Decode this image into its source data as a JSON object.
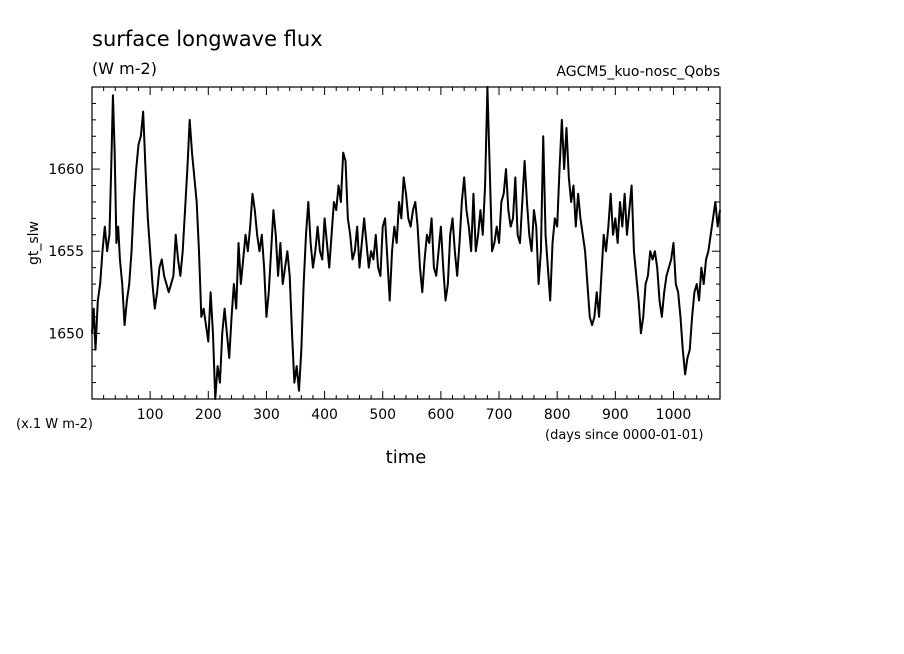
{
  "chart_data": {
    "type": "line",
    "title": "surface longwave flux",
    "units": "(W m-2)",
    "experiment": "AGCM5_kuo-nosc_Qobs",
    "ylabel": "gt_slw",
    "yscale_note": "(x.1 W m-2)",
    "xlabel": "time",
    "xunit_note": "(days since 0000-01-01)",
    "xlim": [
      0,
      1080
    ],
    "ylim": [
      1646,
      1665
    ],
    "xticks": [
      100,
      200,
      300,
      400,
      500,
      600,
      700,
      800,
      900,
      1000
    ],
    "yticks": [
      1650,
      1655,
      1660
    ],
    "grid": false,
    "series": [
      {
        "color": "#000000",
        "points": [
          [
            0,
            1650.0
          ],
          [
            3,
            1651.5
          ],
          [
            6,
            1649.0
          ],
          [
            10,
            1652.0
          ],
          [
            14,
            1653.0
          ],
          [
            18,
            1655.0
          ],
          [
            22,
            1656.5
          ],
          [
            26,
            1655.0
          ],
          [
            30,
            1656.0
          ],
          [
            33,
            1660.0
          ],
          [
            36,
            1664.5
          ],
          [
            39,
            1661.0
          ],
          [
            42,
            1655.5
          ],
          [
            45,
            1656.5
          ],
          [
            48,
            1654.5
          ],
          [
            52,
            1653.0
          ],
          [
            56,
            1650.5
          ],
          [
            60,
            1652.0
          ],
          [
            64,
            1653.0
          ],
          [
            68,
            1655.0
          ],
          [
            72,
            1658.0
          ],
          [
            76,
            1660.0
          ],
          [
            80,
            1661.5
          ],
          [
            84,
            1662.0
          ],
          [
            88,
            1663.5
          ],
          [
            92,
            1660.0
          ],
          [
            96,
            1657.0
          ],
          [
            100,
            1655.0
          ],
          [
            104,
            1653.0
          ],
          [
            108,
            1651.5
          ],
          [
            112,
            1652.5
          ],
          [
            116,
            1654.0
          ],
          [
            120,
            1654.5
          ],
          [
            124,
            1653.5
          ],
          [
            128,
            1653.0
          ],
          [
            132,
            1652.5
          ],
          [
            136,
            1653.0
          ],
          [
            140,
            1653.5
          ],
          [
            144,
            1656.0
          ],
          [
            148,
            1654.5
          ],
          [
            152,
            1653.5
          ],
          [
            156,
            1655.0
          ],
          [
            160,
            1657.5
          ],
          [
            164,
            1660.0
          ],
          [
            168,
            1663.0
          ],
          [
            172,
            1661.0
          ],
          [
            176,
            1659.5
          ],
          [
            180,
            1658.0
          ],
          [
            184,
            1655.0
          ],
          [
            188,
            1651.0
          ],
          [
            192,
            1651.5
          ],
          [
            196,
            1650.5
          ],
          [
            200,
            1649.5
          ],
          [
            204,
            1652.5
          ],
          [
            208,
            1650.0
          ],
          [
            212,
            1646.0
          ],
          [
            216,
            1648.0
          ],
          [
            220,
            1647.0
          ],
          [
            224,
            1650.0
          ],
          [
            228,
            1651.5
          ],
          [
            232,
            1650.0
          ],
          [
            236,
            1648.5
          ],
          [
            240,
            1651.0
          ],
          [
            244,
            1653.0
          ],
          [
            248,
            1651.5
          ],
          [
            252,
            1655.5
          ],
          [
            256,
            1653.0
          ],
          [
            260,
            1654.5
          ],
          [
            264,
            1656.0
          ],
          [
            268,
            1655.0
          ],
          [
            272,
            1656.5
          ],
          [
            276,
            1658.5
          ],
          [
            280,
            1657.5
          ],
          [
            284,
            1656.0
          ],
          [
            288,
            1655.0
          ],
          [
            292,
            1656.0
          ],
          [
            296,
            1654.0
          ],
          [
            300,
            1651.0
          ],
          [
            304,
            1652.5
          ],
          [
            308,
            1655.0
          ],
          [
            312,
            1657.5
          ],
          [
            316,
            1656.0
          ],
          [
            320,
            1653.5
          ],
          [
            324,
            1655.5
          ],
          [
            328,
            1653.0
          ],
          [
            332,
            1654.0
          ],
          [
            336,
            1655.0
          ],
          [
            340,
            1653.5
          ],
          [
            344,
            1650.0
          ],
          [
            348,
            1647.0
          ],
          [
            352,
            1648.0
          ],
          [
            356,
            1646.5
          ],
          [
            360,
            1649.0
          ],
          [
            364,
            1653.0
          ],
          [
            368,
            1656.0
          ],
          [
            372,
            1658.0
          ],
          [
            376,
            1655.5
          ],
          [
            380,
            1654.0
          ],
          [
            384,
            1655.0
          ],
          [
            388,
            1656.5
          ],
          [
            392,
            1655.0
          ],
          [
            396,
            1654.5
          ],
          [
            400,
            1657.0
          ],
          [
            404,
            1655.5
          ],
          [
            408,
            1654.0
          ],
          [
            412,
            1656.0
          ],
          [
            416,
            1658.0
          ],
          [
            420,
            1657.5
          ],
          [
            424,
            1659.0
          ],
          [
            428,
            1658.0
          ],
          [
            432,
            1661.0
          ],
          [
            436,
            1660.5
          ],
          [
            440,
            1657.0
          ],
          [
            444,
            1656.0
          ],
          [
            448,
            1654.5
          ],
          [
            452,
            1655.0
          ],
          [
            456,
            1656.5
          ],
          [
            460,
            1654.0
          ],
          [
            464,
            1655.5
          ],
          [
            468,
            1657.0
          ],
          [
            472,
            1655.5
          ],
          [
            476,
            1654.0
          ],
          [
            480,
            1655.0
          ],
          [
            484,
            1654.5
          ],
          [
            488,
            1656.0
          ],
          [
            492,
            1654.0
          ],
          [
            496,
            1653.5
          ],
          [
            500,
            1656.5
          ],
          [
            504,
            1657.0
          ],
          [
            508,
            1654.5
          ],
          [
            512,
            1652.0
          ],
          [
            516,
            1655.0
          ],
          [
            520,
            1656.5
          ],
          [
            524,
            1655.5
          ],
          [
            528,
            1658.0
          ],
          [
            532,
            1657.0
          ],
          [
            536,
            1659.5
          ],
          [
            540,
            1658.5
          ],
          [
            544,
            1657.0
          ],
          [
            548,
            1656.5
          ],
          [
            552,
            1657.5
          ],
          [
            556,
            1658.0
          ],
          [
            560,
            1656.5
          ],
          [
            564,
            1654.0
          ],
          [
            568,
            1652.5
          ],
          [
            572,
            1654.5
          ],
          [
            576,
            1656.0
          ],
          [
            580,
            1655.5
          ],
          [
            584,
            1657.0
          ],
          [
            588,
            1654.0
          ],
          [
            592,
            1653.5
          ],
          [
            596,
            1655.0
          ],
          [
            600,
            1656.5
          ],
          [
            604,
            1654.0
          ],
          [
            608,
            1652.0
          ],
          [
            612,
            1653.0
          ],
          [
            616,
            1656.0
          ],
          [
            620,
            1657.0
          ],
          [
            624,
            1655.0
          ],
          [
            628,
            1653.5
          ],
          [
            632,
            1655.5
          ],
          [
            636,
            1658.0
          ],
          [
            640,
            1659.5
          ],
          [
            644,
            1657.5
          ],
          [
            648,
            1656.5
          ],
          [
            652,
            1655.0
          ],
          [
            656,
            1658.5
          ],
          [
            660,
            1655.0
          ],
          [
            664,
            1656.0
          ],
          [
            668,
            1657.5
          ],
          [
            672,
            1656.0
          ],
          [
            676,
            1659.0
          ],
          [
            680,
            1665.0
          ],
          [
            684,
            1660.0
          ],
          [
            688,
            1655.0
          ],
          [
            692,
            1655.5
          ],
          [
            696,
            1656.5
          ],
          [
            700,
            1655.5
          ],
          [
            704,
            1658.0
          ],
          [
            708,
            1658.5
          ],
          [
            712,
            1660.0
          ],
          [
            716,
            1657.5
          ],
          [
            720,
            1656.5
          ],
          [
            724,
            1657.0
          ],
          [
            728,
            1659.5
          ],
          [
            732,
            1656.0
          ],
          [
            736,
            1655.5
          ],
          [
            740,
            1658.0
          ],
          [
            744,
            1660.5
          ],
          [
            748,
            1658.0
          ],
          [
            752,
            1656.0
          ],
          [
            756,
            1655.0
          ],
          [
            760,
            1657.5
          ],
          [
            764,
            1656.5
          ],
          [
            768,
            1653.0
          ],
          [
            772,
            1655.0
          ],
          [
            776,
            1662.0
          ],
          [
            780,
            1656.0
          ],
          [
            784,
            1654.0
          ],
          [
            788,
            1652.0
          ],
          [
            792,
            1655.5
          ],
          [
            796,
            1657.0
          ],
          [
            800,
            1656.5
          ],
          [
            804,
            1660.0
          ],
          [
            808,
            1663.0
          ],
          [
            812,
            1660.0
          ],
          [
            816,
            1662.5
          ],
          [
            820,
            1659.5
          ],
          [
            824,
            1658.0
          ],
          [
            828,
            1659.0
          ],
          [
            832,
            1656.5
          ],
          [
            836,
            1658.5
          ],
          [
            840,
            1657.0
          ],
          [
            844,
            1656.0
          ],
          [
            848,
            1655.0
          ],
          [
            852,
            1653.0
          ],
          [
            856,
            1651.0
          ],
          [
            860,
            1650.5
          ],
          [
            864,
            1651.0
          ],
          [
            868,
            1652.5
          ],
          [
            872,
            1651.0
          ],
          [
            876,
            1653.5
          ],
          [
            880,
            1656.0
          ],
          [
            884,
            1655.0
          ],
          [
            888,
            1656.5
          ],
          [
            892,
            1658.5
          ],
          [
            896,
            1656.0
          ],
          [
            900,
            1657.0
          ],
          [
            904,
            1655.5
          ],
          [
            908,
            1658.0
          ],
          [
            912,
            1656.5
          ],
          [
            916,
            1658.5
          ],
          [
            920,
            1656.0
          ],
          [
            924,
            1657.5
          ],
          [
            928,
            1659.0
          ],
          [
            932,
            1655.0
          ],
          [
            936,
            1653.5
          ],
          [
            940,
            1652.0
          ],
          [
            944,
            1650.0
          ],
          [
            948,
            1651.0
          ],
          [
            952,
            1653.0
          ],
          [
            956,
            1653.5
          ],
          [
            960,
            1655.0
          ],
          [
            964,
            1654.5
          ],
          [
            968,
            1655.0
          ],
          [
            972,
            1654.0
          ],
          [
            976,
            1652.0
          ],
          [
            980,
            1651.0
          ],
          [
            984,
            1652.5
          ],
          [
            988,
            1653.5
          ],
          [
            992,
            1654.0
          ],
          [
            996,
            1654.5
          ],
          [
            1000,
            1655.5
          ],
          [
            1004,
            1653.0
          ],
          [
            1008,
            1652.5
          ],
          [
            1012,
            1651.0
          ],
          [
            1016,
            1649.0
          ],
          [
            1020,
            1647.5
          ],
          [
            1024,
            1648.5
          ],
          [
            1028,
            1649.0
          ],
          [
            1032,
            1651.0
          ],
          [
            1036,
            1652.5
          ],
          [
            1040,
            1653.0
          ],
          [
            1044,
            1652.0
          ],
          [
            1048,
            1654.0
          ],
          [
            1052,
            1653.0
          ],
          [
            1056,
            1654.5
          ],
          [
            1060,
            1655.0
          ],
          [
            1064,
            1656.0
          ],
          [
            1068,
            1657.0
          ],
          [
            1072,
            1658.0
          ],
          [
            1076,
            1656.5
          ],
          [
            1080,
            1657.5
          ]
        ]
      }
    ]
  }
}
